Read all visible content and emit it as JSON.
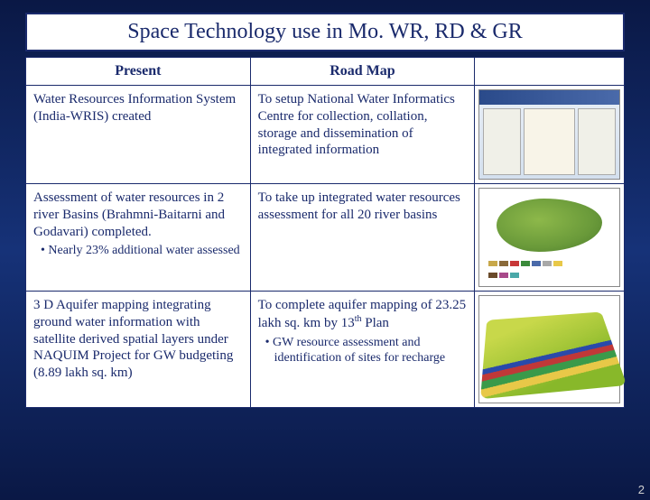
{
  "title": "Space Technology use in Mo. WR, RD & GR",
  "headers": {
    "present": "Present",
    "roadmap": "Road Map"
  },
  "rows": [
    {
      "present": "Water Resources Information System (India-WRIS) created",
      "roadmap": "To setup National Water Informatics Centre  for collection, collation, storage and dissemination of integrated information"
    },
    {
      "present": "Assessment of water resources in 2 river Basins (Brahmni-Baitarni and Godavari) completed.",
      "present_bullet": "Nearly 23% additional water  assessed",
      "roadmap": "To take up integrated water resources assessment for all 20 river basins"
    },
    {
      "present": "3 D Aquifer mapping integrating ground water information with satellite derived spatial layers under NAQUIM Project for GW budgeting (8.89 lakh sq. km)",
      "roadmap_main": "To complete aquifer mapping of 23.25 lakh sq. km by 13",
      "roadmap_sup": "th",
      "roadmap_tail": " Plan",
      "roadmap_bullet": "GW resource assessment and identification of sites for recharge"
    }
  ],
  "page_number": "2",
  "legend_colors": [
    "#c8a84a",
    "#8a6a3a",
    "#c83838",
    "#3a8a3a",
    "#4a6aaa",
    "#a8a8a8",
    "#e8c848",
    "#6a4a2a",
    "#a84a8a",
    "#4aa8a8"
  ]
}
